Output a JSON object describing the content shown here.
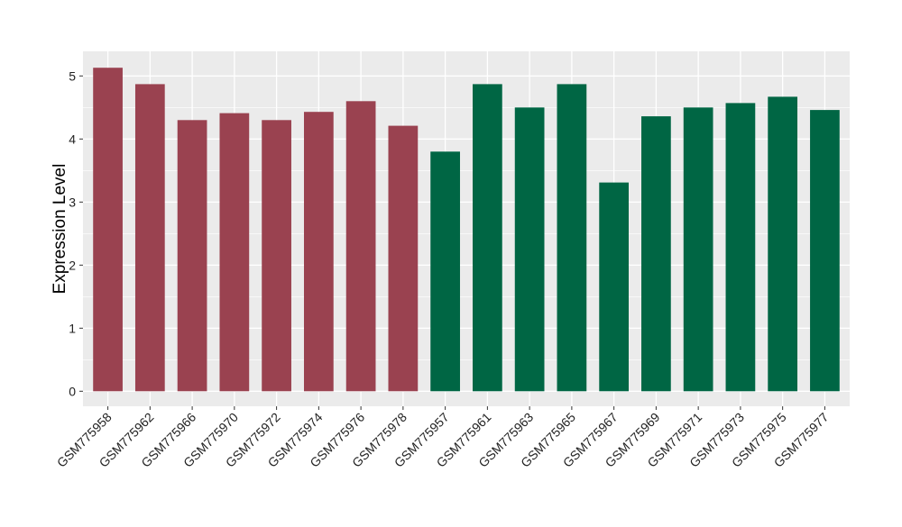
{
  "chart_data": {
    "type": "bar",
    "title": "",
    "xlabel": "",
    "ylabel": "Expression Level",
    "ylim": [
      -0.25,
      5.38
    ],
    "yticks": [
      0,
      1,
      2,
      3,
      4,
      5
    ],
    "grid": true,
    "categories": [
      "GSM775958",
      "GSM775962",
      "GSM775966",
      "GSM775970",
      "GSM775972",
      "GSM775974",
      "GSM775976",
      "GSM775978",
      "GSM775957",
      "GSM775961",
      "GSM775963",
      "GSM775965",
      "GSM775967",
      "GSM775969",
      "GSM775971",
      "GSM775973",
      "GSM775975",
      "GSM775977"
    ],
    "values": [
      5.13,
      4.87,
      4.3,
      4.41,
      4.3,
      4.43,
      4.6,
      4.21,
      3.8,
      4.87,
      4.5,
      4.87,
      3.31,
      4.36,
      4.5,
      4.57,
      4.67,
      4.46
    ],
    "groups": [
      0,
      0,
      0,
      0,
      0,
      0,
      0,
      0,
      1,
      1,
      1,
      1,
      1,
      1,
      1,
      1,
      1,
      1
    ],
    "colors": [
      "#9a4250",
      "#006644"
    ],
    "panel_color": "#ebebeb",
    "grid_color": "#ffffff"
  }
}
